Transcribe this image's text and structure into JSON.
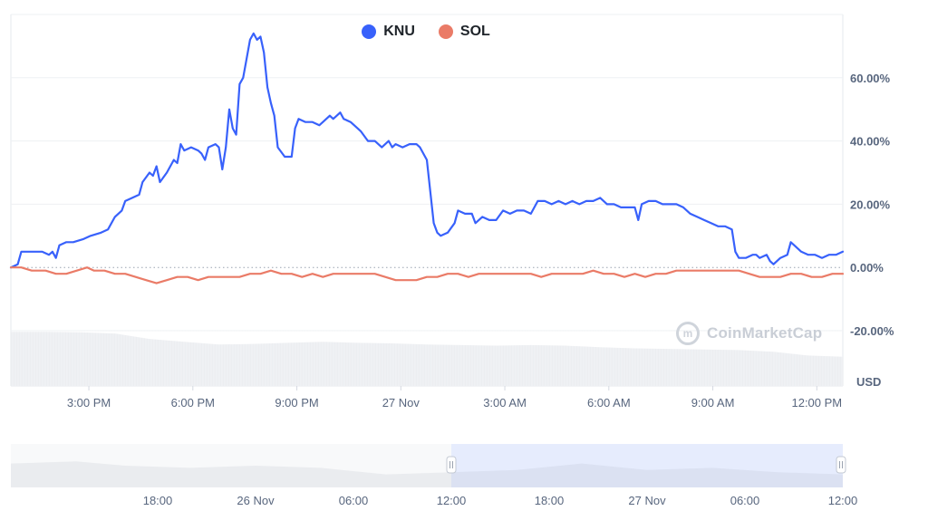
{
  "legend": {
    "items": [
      {
        "label": "KNU",
        "color": "#3861fb"
      },
      {
        "label": "SOL",
        "color": "#ea7b67"
      }
    ]
  },
  "watermark": {
    "text": "CoinMarketCap"
  },
  "icons": {
    "watermark_logo": "coinmarketcap-logo-icon"
  },
  "chart_data": {
    "type": "line",
    "title": "",
    "xlabel": "",
    "ylabel": "",
    "unit_label": "USD",
    "y_ticks": [
      "60.00%",
      "40.00%",
      "20.00%",
      "0.00%",
      "-20.00%"
    ],
    "y_tick_values": [
      60,
      40,
      20,
      0,
      -20
    ],
    "ylim": [
      -20,
      80
    ],
    "x_ticks": [
      "3:00 PM",
      "6:00 PM",
      "9:00 PM",
      "27 Nov",
      "3:00 AM",
      "6:00 AM",
      "9:00 AM",
      "12:00 PM"
    ],
    "x_tick_hours": [
      2.25,
      5.25,
      8.25,
      11.25,
      14.25,
      17.25,
      20.25,
      23.25
    ],
    "x_range_hours": [
      0,
      24
    ],
    "grid": true,
    "legend_position": "top-center",
    "series": [
      {
        "name": "KNU",
        "color": "#3861fb",
        "points": [
          [
            0,
            0
          ],
          [
            0.2,
            1
          ],
          [
            0.3,
            5
          ],
          [
            0.6,
            5
          ],
          [
            0.9,
            5
          ],
          [
            1.1,
            4
          ],
          [
            1.2,
            5
          ],
          [
            1.3,
            3
          ],
          [
            1.4,
            7
          ],
          [
            1.6,
            8
          ],
          [
            1.8,
            8
          ],
          [
            2.1,
            9
          ],
          [
            2.3,
            10
          ],
          [
            2.6,
            11
          ],
          [
            2.8,
            12
          ],
          [
            3.0,
            16
          ],
          [
            3.2,
            18
          ],
          [
            3.3,
            21
          ],
          [
            3.5,
            22
          ],
          [
            3.7,
            23
          ],
          [
            3.8,
            27
          ],
          [
            4.0,
            30
          ],
          [
            4.1,
            29
          ],
          [
            4.2,
            32
          ],
          [
            4.3,
            27
          ],
          [
            4.5,
            30
          ],
          [
            4.7,
            34
          ],
          [
            4.8,
            33
          ],
          [
            4.9,
            39
          ],
          [
            5.0,
            37
          ],
          [
            5.2,
            38
          ],
          [
            5.4,
            37
          ],
          [
            5.5,
            36
          ],
          [
            5.6,
            34
          ],
          [
            5.7,
            38
          ],
          [
            5.9,
            39
          ],
          [
            6.0,
            38
          ],
          [
            6.1,
            31
          ],
          [
            6.2,
            38
          ],
          [
            6.3,
            50
          ],
          [
            6.4,
            44
          ],
          [
            6.5,
            42
          ],
          [
            6.6,
            58
          ],
          [
            6.7,
            60
          ],
          [
            6.8,
            66
          ],
          [
            6.9,
            72
          ],
          [
            7.0,
            74
          ],
          [
            7.1,
            72
          ],
          [
            7.2,
            73
          ],
          [
            7.3,
            68
          ],
          [
            7.4,
            57
          ],
          [
            7.5,
            52
          ],
          [
            7.6,
            48
          ],
          [
            7.7,
            38
          ],
          [
            7.9,
            35
          ],
          [
            8.1,
            35
          ],
          [
            8.2,
            44
          ],
          [
            8.3,
            47
          ],
          [
            8.5,
            46
          ],
          [
            8.7,
            46
          ],
          [
            8.9,
            45
          ],
          [
            9.0,
            46
          ],
          [
            9.2,
            48
          ],
          [
            9.3,
            47
          ],
          [
            9.4,
            48
          ],
          [
            9.5,
            49
          ],
          [
            9.6,
            47
          ],
          [
            9.8,
            46
          ],
          [
            10.0,
            44
          ],
          [
            10.1,
            43
          ],
          [
            10.3,
            40
          ],
          [
            10.5,
            40
          ],
          [
            10.7,
            38
          ],
          [
            10.9,
            40
          ],
          [
            11.0,
            38
          ],
          [
            11.1,
            39
          ],
          [
            11.3,
            38
          ],
          [
            11.5,
            39
          ],
          [
            11.7,
            39
          ],
          [
            11.8,
            38
          ],
          [
            12.0,
            34
          ],
          [
            12.1,
            24
          ],
          [
            12.2,
            14
          ],
          [
            12.3,
            11
          ],
          [
            12.4,
            10
          ],
          [
            12.6,
            11
          ],
          [
            12.8,
            14
          ],
          [
            12.9,
            18
          ],
          [
            13.1,
            17
          ],
          [
            13.3,
            17
          ],
          [
            13.4,
            14
          ],
          [
            13.6,
            16
          ],
          [
            13.8,
            15
          ],
          [
            14.0,
            15
          ],
          [
            14.2,
            18
          ],
          [
            14.4,
            17
          ],
          [
            14.6,
            18
          ],
          [
            14.8,
            18
          ],
          [
            15.0,
            17
          ],
          [
            15.2,
            21
          ],
          [
            15.4,
            21
          ],
          [
            15.6,
            20
          ],
          [
            15.8,
            21
          ],
          [
            16.0,
            20
          ],
          [
            16.2,
            21
          ],
          [
            16.4,
            20
          ],
          [
            16.6,
            21
          ],
          [
            16.8,
            21
          ],
          [
            17.0,
            22
          ],
          [
            17.2,
            20
          ],
          [
            17.4,
            20
          ],
          [
            17.6,
            19
          ],
          [
            17.8,
            19
          ],
          [
            18.0,
            19
          ],
          [
            18.1,
            15
          ],
          [
            18.2,
            20
          ],
          [
            18.4,
            21
          ],
          [
            18.6,
            21
          ],
          [
            18.8,
            20
          ],
          [
            19.0,
            20
          ],
          [
            19.2,
            20
          ],
          [
            19.4,
            19
          ],
          [
            19.6,
            17
          ],
          [
            19.8,
            16
          ],
          [
            20.0,
            15
          ],
          [
            20.2,
            14
          ],
          [
            20.4,
            13
          ],
          [
            20.6,
            13
          ],
          [
            20.8,
            12
          ],
          [
            20.9,
            5
          ],
          [
            21.0,
            3
          ],
          [
            21.2,
            3
          ],
          [
            21.4,
            4
          ],
          [
            21.5,
            4
          ],
          [
            21.6,
            3
          ],
          [
            21.8,
            4
          ],
          [
            21.9,
            2
          ],
          [
            22.0,
            1
          ],
          [
            22.2,
            3
          ],
          [
            22.4,
            4
          ],
          [
            22.5,
            8
          ],
          [
            22.6,
            7
          ],
          [
            22.8,
            5
          ],
          [
            23.0,
            4
          ],
          [
            23.2,
            4
          ],
          [
            23.4,
            3
          ],
          [
            23.6,
            4
          ],
          [
            23.8,
            4
          ],
          [
            24.0,
            5
          ]
        ]
      },
      {
        "name": "SOL",
        "color": "#ea7b67",
        "points": [
          [
            0,
            0
          ],
          [
            0.3,
            0
          ],
          [
            0.6,
            -1
          ],
          [
            1.0,
            -1
          ],
          [
            1.3,
            -2
          ],
          [
            1.6,
            -2
          ],
          [
            1.9,
            -1
          ],
          [
            2.2,
            0
          ],
          [
            2.4,
            -1
          ],
          [
            2.7,
            -1
          ],
          [
            3.0,
            -2
          ],
          [
            3.3,
            -2
          ],
          [
            3.6,
            -3
          ],
          [
            3.9,
            -4
          ],
          [
            4.2,
            -5
          ],
          [
            4.5,
            -4
          ],
          [
            4.8,
            -3
          ],
          [
            5.1,
            -3
          ],
          [
            5.4,
            -4
          ],
          [
            5.7,
            -3
          ],
          [
            6.0,
            -3
          ],
          [
            6.3,
            -3
          ],
          [
            6.6,
            -3
          ],
          [
            6.9,
            -2
          ],
          [
            7.2,
            -2
          ],
          [
            7.5,
            -1
          ],
          [
            7.8,
            -2
          ],
          [
            8.1,
            -2
          ],
          [
            8.4,
            -3
          ],
          [
            8.7,
            -2
          ],
          [
            9.0,
            -3
          ],
          [
            9.3,
            -2
          ],
          [
            9.6,
            -2
          ],
          [
            9.9,
            -2
          ],
          [
            10.2,
            -2
          ],
          [
            10.5,
            -2
          ],
          [
            10.8,
            -3
          ],
          [
            11.1,
            -4
          ],
          [
            11.4,
            -4
          ],
          [
            11.7,
            -4
          ],
          [
            12.0,
            -3
          ],
          [
            12.3,
            -3
          ],
          [
            12.6,
            -2
          ],
          [
            12.9,
            -2
          ],
          [
            13.2,
            -3
          ],
          [
            13.5,
            -2
          ],
          [
            13.8,
            -2
          ],
          [
            14.1,
            -2
          ],
          [
            14.4,
            -2
          ],
          [
            14.7,
            -2
          ],
          [
            15.0,
            -2
          ],
          [
            15.3,
            -3
          ],
          [
            15.6,
            -2
          ],
          [
            15.9,
            -2
          ],
          [
            16.2,
            -2
          ],
          [
            16.5,
            -2
          ],
          [
            16.8,
            -1
          ],
          [
            17.1,
            -2
          ],
          [
            17.4,
            -2
          ],
          [
            17.7,
            -3
          ],
          [
            18.0,
            -2
          ],
          [
            18.3,
            -3
          ],
          [
            18.6,
            -2
          ],
          [
            18.9,
            -2
          ],
          [
            19.2,
            -1
          ],
          [
            19.5,
            -1
          ],
          [
            19.8,
            -1
          ],
          [
            20.1,
            -1
          ],
          [
            20.4,
            -1
          ],
          [
            20.7,
            -1
          ],
          [
            21.0,
            -1
          ],
          [
            21.3,
            -2
          ],
          [
            21.6,
            -3
          ],
          [
            21.9,
            -3
          ],
          [
            22.2,
            -3
          ],
          [
            22.5,
            -2
          ],
          [
            22.8,
            -2
          ],
          [
            23.1,
            -3
          ],
          [
            23.4,
            -3
          ],
          [
            23.7,
            -2
          ],
          [
            24.0,
            -2
          ]
        ]
      }
    ],
    "volume_levels": [
      [
        0,
        0.98
      ],
      [
        1,
        0.98
      ],
      [
        2,
        0.97
      ],
      [
        3,
        0.95
      ],
      [
        4,
        0.85
      ],
      [
        5,
        0.8
      ],
      [
        6,
        0.75
      ],
      [
        7,
        0.76
      ],
      [
        8,
        0.78
      ],
      [
        9,
        0.8
      ],
      [
        10,
        0.78
      ],
      [
        11,
        0.77
      ],
      [
        12,
        0.75
      ],
      [
        13,
        0.74
      ],
      [
        14,
        0.73
      ],
      [
        15,
        0.74
      ],
      [
        16,
        0.73
      ],
      [
        17,
        0.7
      ],
      [
        18,
        0.68
      ],
      [
        19,
        0.67
      ],
      [
        20,
        0.66
      ],
      [
        21,
        0.65
      ],
      [
        22,
        0.62
      ],
      [
        23,
        0.55
      ],
      [
        24,
        0.53
      ]
    ],
    "navigator": {
      "ticks": [
        "18:00",
        "26 Nov",
        "06:00",
        "12:00",
        "18:00",
        "27 Nov",
        "06:00",
        "12:00"
      ],
      "tick_hours": [
        -30,
        -24,
        -18,
        -12,
        -6,
        0,
        6,
        12
      ],
      "range_hours": [
        -39,
        12
      ],
      "selected_range_hours": [
        -12,
        12
      ],
      "area_levels": [
        [
          -39,
          0.55
        ],
        [
          -35,
          0.6
        ],
        [
          -32,
          0.5
        ],
        [
          -28,
          0.45
        ],
        [
          -24,
          0.5
        ],
        [
          -20,
          0.45
        ],
        [
          -16,
          0.3
        ],
        [
          -12,
          0.35
        ],
        [
          -8,
          0.4
        ],
        [
          -4,
          0.55
        ],
        [
          0,
          0.4
        ],
        [
          4,
          0.45
        ],
        [
          8,
          0.35
        ],
        [
          12,
          0.3
        ]
      ]
    }
  }
}
